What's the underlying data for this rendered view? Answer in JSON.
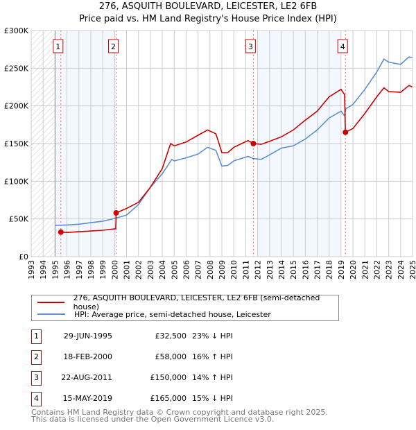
{
  "title_line1": "276, ASQUITH BOULEVARD, LEICESTER, LE2 6FB",
  "title_line2": "Price paid vs. HM Land Registry's House Price Index (HPI)",
  "chart_data": {
    "type": "line",
    "title": "276, ASQUITH BOULEVARD, LEICESTER, LE2 6FB — Price paid vs. HM Land Registry's House Price Index (HPI)",
    "xlim": [
      1993,
      2025
    ],
    "ylim": [
      0,
      300000
    ],
    "x_ticks": [
      1993,
      1994,
      1995,
      1996,
      1997,
      1998,
      1999,
      2000,
      2001,
      2002,
      2003,
      2004,
      2005,
      2006,
      2007,
      2008,
      2009,
      2010,
      2011,
      2012,
      2013,
      2014,
      2015,
      2016,
      2017,
      2018,
      2019,
      2020,
      2021,
      2022,
      2023,
      2024,
      2025
    ],
    "y_ticks": [
      0,
      50000,
      100000,
      150000,
      200000,
      250000,
      300000
    ],
    "y_tick_labels": [
      "£0",
      "£50K",
      "£100K",
      "£150K",
      "£200K",
      "£250K",
      "£300K"
    ],
    "grid": true,
    "colors": {
      "property": "#cc0000",
      "hpi": "#5b8fd4",
      "shade": "#f3f7fe",
      "marker_line": "#ee6666"
    },
    "hatched_range": [
      1993,
      1995
    ],
    "shaded_ranges": [
      [
        1995.0,
        2000.13
      ],
      [
        2012.0,
        2019.0
      ]
    ],
    "series": [
      {
        "name": "276, ASQUITH BOULEVARD, LEICESTER, LE2 6FB (semi-detached house)",
        "key": "property",
        "points": [
          [
            1995.49,
            32500
          ],
          [
            1996,
            32000
          ],
          [
            1997,
            33000
          ],
          [
            1998,
            34000
          ],
          [
            1999,
            35000
          ],
          [
            2000.1,
            37000
          ],
          [
            2000.13,
            58000
          ],
          [
            2001,
            64000
          ],
          [
            2002,
            72000
          ],
          [
            2003,
            92000
          ],
          [
            2004,
            117000
          ],
          [
            2004.7,
            150000
          ],
          [
            2005,
            147000
          ],
          [
            2006,
            152000
          ],
          [
            2007,
            161000
          ],
          [
            2007.8,
            168000
          ],
          [
            2008.5,
            163000
          ],
          [
            2009,
            138000
          ],
          [
            2009.5,
            138000
          ],
          [
            2010,
            145000
          ],
          [
            2011.2,
            154000
          ],
          [
            2011.64,
            150000
          ],
          [
            2012.3,
            149000
          ],
          [
            2013,
            153000
          ],
          [
            2014,
            159000
          ],
          [
            2015,
            168000
          ],
          [
            2016,
            181000
          ],
          [
            2017,
            193000
          ],
          [
            2018,
            212000
          ],
          [
            2019,
            222000
          ],
          [
            2019.3,
            215000
          ],
          [
            2019.37,
            165000
          ],
          [
            2020,
            170000
          ],
          [
            2021,
            190000
          ],
          [
            2022,
            212000
          ],
          [
            2022.6,
            224000
          ],
          [
            2023,
            219000
          ],
          [
            2024,
            218000
          ],
          [
            2024.7,
            227000
          ],
          [
            2025,
            225000
          ]
        ]
      },
      {
        "name": "HPI: Average price, semi-detached house, Leicester",
        "key": "hpi",
        "points": [
          [
            1995,
            41500
          ],
          [
            1996,
            42000
          ],
          [
            1997,
            43000
          ],
          [
            1998,
            45000
          ],
          [
            1999,
            47000
          ],
          [
            2000,
            50600
          ],
          [
            2001,
            55000
          ],
          [
            2002,
            69000
          ],
          [
            2003,
            92000
          ],
          [
            2004,
            110000
          ],
          [
            2004.8,
            129000
          ],
          [
            2005,
            127000
          ],
          [
            2006,
            131000
          ],
          [
            2007,
            136000
          ],
          [
            2007.8,
            145000
          ],
          [
            2008.5,
            141000
          ],
          [
            2009,
            120000
          ],
          [
            2009.5,
            121000
          ],
          [
            2010,
            127000
          ],
          [
            2011.2,
            133000
          ],
          [
            2011.64,
            130000
          ],
          [
            2012.3,
            129000
          ],
          [
            2013,
            135000
          ],
          [
            2014,
            144000
          ],
          [
            2015,
            147000
          ],
          [
            2016,
            156000
          ],
          [
            2017,
            168000
          ],
          [
            2018,
            184000
          ],
          [
            2019,
            193000
          ],
          [
            2019.3,
            187000
          ],
          [
            2019.4,
            196000
          ],
          [
            2020,
            202000
          ],
          [
            2021,
            222000
          ],
          [
            2022,
            245000
          ],
          [
            2022.6,
            262000
          ],
          [
            2023,
            258000
          ],
          [
            2024,
            255000
          ],
          [
            2024.7,
            265000
          ],
          [
            2025,
            264000
          ]
        ]
      }
    ],
    "sales": [
      {
        "id": "1",
        "x": 1995.49,
        "value": 32500
      },
      {
        "id": "2",
        "x": 2000.13,
        "value": 58000
      },
      {
        "id": "3",
        "x": 2011.64,
        "value": 150000
      },
      {
        "id": "4",
        "x": 2019.37,
        "value": 165000
      }
    ]
  },
  "legend": {
    "property": "276, ASQUITH BOULEVARD, LEICESTER, LE2 6FB (semi-detached house)",
    "hpi": "HPI: Average price, semi-detached house, Leicester"
  },
  "transactions": [
    {
      "id": "1",
      "date": "29-JUN-1995",
      "price": "£32,500",
      "hpi": "23% ↓ HPI"
    },
    {
      "id": "2",
      "date": "18-FEB-2000",
      "price": "£58,000",
      "hpi": "16% ↑ HPI"
    },
    {
      "id": "3",
      "date": "22-AUG-2011",
      "price": "£150,000",
      "hpi": "14% ↑ HPI"
    },
    {
      "id": "4",
      "date": "15-MAY-2019",
      "price": "£165,000",
      "hpi": "15% ↓ HPI"
    }
  ],
  "footer_line1": "Contains HM Land Registry data © Crown copyright and database right 2025.",
  "footer_line2": "This data is licensed under the Open Government Licence v3.0."
}
